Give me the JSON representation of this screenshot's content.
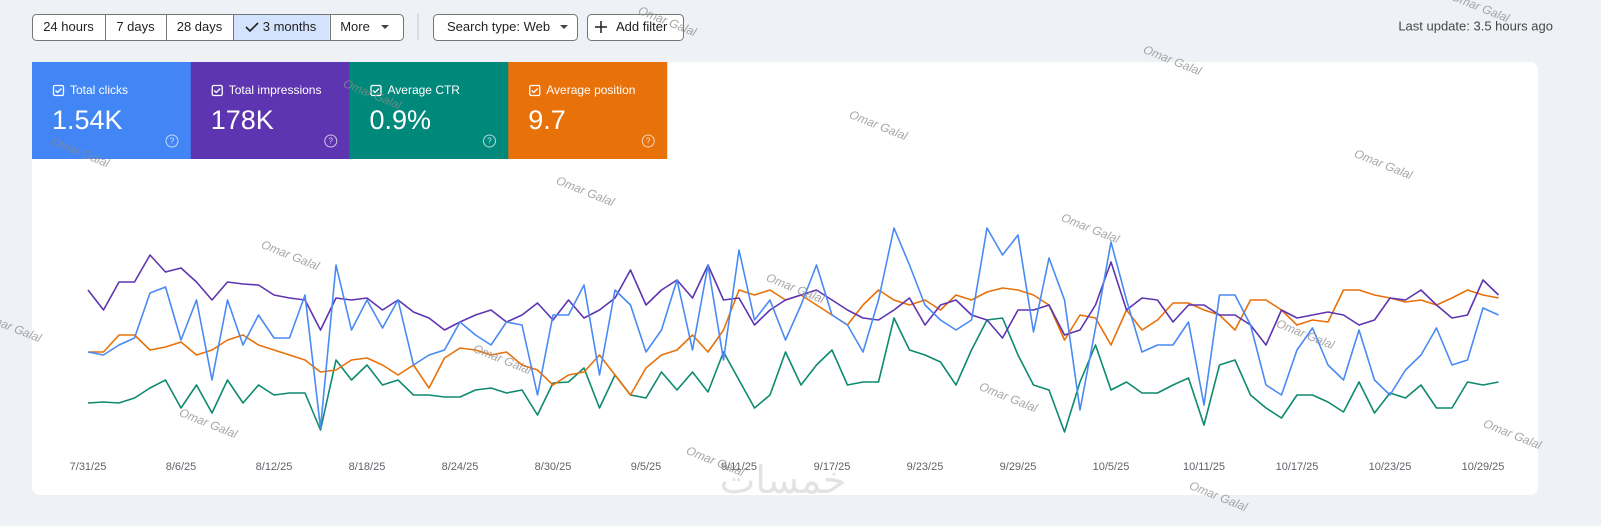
{
  "toolbar": {
    "date_ranges": [
      "24 hours",
      "7 days",
      "28 days",
      "3 months",
      "More"
    ],
    "search_type": "Search type: Web",
    "add_filter": "Add filter",
    "last_update": "Last update: 3.5 hours ago"
  },
  "chart_data": {
    "type": "line",
    "categories": [
      "7/31/25",
      null,
      null,
      null,
      null,
      null,
      "8/6/25",
      null,
      null,
      null,
      null,
      null,
      "8/12/25",
      null,
      null,
      null,
      null,
      null,
      "8/18/25",
      null,
      null,
      null,
      null,
      null,
      "8/24/25",
      null,
      null,
      null,
      null,
      null,
      "8/30/25",
      null,
      null,
      null,
      null,
      null,
      "9/5/25",
      null,
      null,
      null,
      null,
      null,
      "9/11/25",
      null,
      null,
      null,
      null,
      null,
      "9/17/25",
      null,
      null,
      null,
      null,
      null,
      "9/23/25",
      null,
      null,
      null,
      null,
      null,
      "9/29/25",
      null,
      null,
      null,
      null,
      null,
      "10/5/25",
      null,
      null,
      null,
      null,
      null,
      "10/11/25",
      null,
      null,
      null,
      null,
      null,
      "10/17/25",
      null,
      null,
      null,
      null,
      null,
      "10/23/25",
      null,
      null,
      null,
      null,
      null,
      "10/29/25",
      null
    ],
    "ylim": [
      0,
      280
    ],
    "series": [
      {
        "name": "Total clicks",
        "total": "1.54K",
        "color": "#4285f4",
        "line_color": "#4a8af4",
        "values": [
          98,
          95,
          105,
          112,
          157,
          163,
          110,
          150,
          70,
          150,
          105,
          135,
          112,
          112,
          155,
          22,
          185,
          120,
          150,
          122,
          150,
          85,
          95,
          100,
          128,
          115,
          105,
          128,
          125,
          55,
          135,
          135,
          165,
          75,
          160,
          145,
          98,
          120,
          170,
          100,
          185,
          90,
          200,
          130,
          150,
          110,
          145,
          185,
          135,
          125,
          98,
          150,
          222,
          185,
          145,
          130,
          120,
          130,
          222,
          195,
          215,
          118,
          192,
          150,
          40,
          122,
          208,
          150,
          98,
          105,
          105,
          128,
          45,
          155,
          155,
          125,
          65,
          55,
          100,
          122,
          85,
          70,
          120,
          70,
          55,
          80,
          95,
          122,
          85,
          90,
          142,
          135
        ]
      },
      {
        "name": "Total impressions",
        "total": "178K",
        "color": "#5e35b1",
        "line_color": "#5e35b1",
        "values": [
          160,
          140,
          168,
          168,
          195,
          178,
          182,
          168,
          150,
          168,
          166,
          165,
          155,
          152,
          150,
          120,
          152,
          150,
          152,
          140,
          150,
          138,
          132,
          120,
          128,
          135,
          140,
          128,
          135,
          147,
          130,
          150,
          132,
          140,
          152,
          180,
          145,
          160,
          170,
          152,
          185,
          150,
          152,
          125,
          140,
          150,
          155,
          160,
          150,
          140,
          132,
          130,
          140,
          152,
          125,
          145,
          150,
          135,
          130,
          112,
          140,
          140,
          145,
          115,
          120,
          145,
          188,
          140,
          152,
          150,
          128,
          145,
          145,
          135,
          135,
          125,
          105,
          140,
          132,
          135,
          138,
          135,
          125,
          130,
          152,
          150,
          160,
          145,
          132,
          135,
          170,
          155
        ]
      },
      {
        "name": "Average CTR",
        "total": "0.9%",
        "color": "#00897b",
        "line_color": "#0d8a6f",
        "values": [
          47,
          48,
          47,
          52,
          62,
          70,
          42,
          65,
          37,
          70,
          47,
          65,
          55,
          57,
          57,
          20,
          90,
          70,
          85,
          65,
          70,
          55,
          55,
          53,
          53,
          60,
          62,
          57,
          60,
          35,
          67,
          68,
          82,
          42,
          75,
          55,
          52,
          78,
          60,
          78,
          58,
          98,
          70,
          42,
          55,
          98,
          65,
          85,
          100,
          65,
          68,
          68,
          132,
          100,
          95,
          88,
          65,
          100,
          130,
          132,
          95,
          65,
          60,
          18,
          68,
          105,
          60,
          68,
          57,
          57,
          65,
          72,
          25,
          85,
          90,
          55,
          42,
          32,
          55,
          55,
          48,
          38,
          68,
          37,
          57,
          52,
          65,
          42,
          42,
          68,
          65,
          68
        ]
      },
      {
        "name": "Average position",
        "total": "9.7",
        "color": "#e8710a",
        "line_color": "#e8710a",
        "values": [
          98,
          98,
          115,
          115,
          100,
          103,
          108,
          95,
          100,
          110,
          115,
          105,
          100,
          95,
          90,
          78,
          80,
          90,
          92,
          85,
          75,
          85,
          62,
          92,
          102,
          100,
          95,
          98,
          85,
          80,
          65,
          75,
          78,
          95,
          75,
          55,
          82,
          95,
          100,
          115,
          98,
          120,
          160,
          155,
          160,
          150,
          155,
          145,
          135,
          125,
          145,
          160,
          150,
          145,
          150,
          140,
          155,
          150,
          158,
          162,
          160,
          155,
          145,
          110,
          135,
          132,
          105,
          140,
          120,
          130,
          147,
          147,
          140,
          135,
          120,
          150,
          150,
          140,
          125,
          130,
          128,
          160,
          160,
          155,
          152,
          148,
          150,
          145,
          152,
          160,
          155,
          152
        ]
      }
    ]
  },
  "watermark": "Omar Galal",
  "logo": "خمسات"
}
